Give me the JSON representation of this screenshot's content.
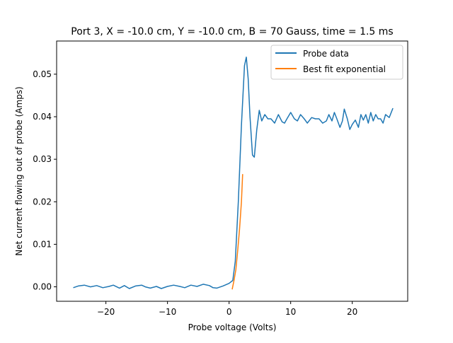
{
  "chart_data": {
    "type": "line",
    "title": "Port 3, X = -10.0 cm, Y = -10.0 cm, B = 70 Gauss, time = 1.5 ms",
    "xlabel": "Probe voltage (Volts)",
    "ylabel": "Net current flowing out of probe (Amps)",
    "xlim": [
      -28,
      29
    ],
    "ylim": [
      -0.0034,
      0.0578
    ],
    "grid": false,
    "legend_position": "top-right",
    "xticks": [
      -20,
      -10,
      0,
      10,
      20
    ],
    "xtick_labels": [
      "−20",
      "−10",
      "0",
      "10",
      "20"
    ],
    "yticks": [
      0.0,
      0.01,
      0.02,
      0.03,
      0.04,
      0.05
    ],
    "ytick_labels": [
      "0.00",
      "0.01",
      "0.02",
      "0.03",
      "0.04",
      "0.05"
    ],
    "series": [
      {
        "name": "Probe data",
        "color": "#1f77b4",
        "x": [
          -25.3,
          -24.5,
          -23.5,
          -22.5,
          -21.5,
          -20.5,
          -19.5,
          -18.8,
          -17.8,
          -17.0,
          -16.2,
          -15.2,
          -14.2,
          -13.6,
          -12.8,
          -11.8,
          -11.0,
          -10.0,
          -9.0,
          -8.0,
          -7.2,
          -6.2,
          -5.2,
          -4.2,
          -3.2,
          -2.6,
          -2.0,
          -1.0,
          0.0,
          0.6,
          1.0,
          1.5,
          2.0,
          2.5,
          2.8,
          3.1,
          3.4,
          3.8,
          4.1,
          4.5,
          4.9,
          5.3,
          5.8,
          6.3,
          6.8,
          7.4,
          8.0,
          8.6,
          9.0,
          9.4,
          10.0,
          10.6,
          11.1,
          11.6,
          12.2,
          12.7,
          13.4,
          14.0,
          14.6,
          15.2,
          15.8,
          16.2,
          16.7,
          17.1,
          17.5,
          18.0,
          18.4,
          18.7,
          19.2,
          19.6,
          20.0,
          20.5,
          21.0,
          21.4,
          21.8,
          22.2,
          22.6,
          23.0,
          23.4,
          23.8,
          24.2,
          24.6,
          25.0,
          25.4,
          26.0,
          26.6
        ],
        "y": [
          -0.0002,
          0.0002,
          0.0004,
          0.0,
          0.0003,
          -0.0002,
          0.0001,
          0.0004,
          -0.0003,
          0.0003,
          -0.0004,
          0.0002,
          0.0004,
          0.0,
          -0.0003,
          0.0001,
          -0.0004,
          0.0001,
          0.0004,
          0.0001,
          -0.0002,
          0.0004,
          0.0001,
          0.0006,
          0.0003,
          -0.0002,
          -0.0003,
          0.0002,
          0.0008,
          0.0015,
          0.006,
          0.02,
          0.038,
          0.052,
          0.054,
          0.049,
          0.04,
          0.031,
          0.0305,
          0.037,
          0.0415,
          0.039,
          0.0405,
          0.0395,
          0.0395,
          0.0385,
          0.0405,
          0.0388,
          0.0385,
          0.0395,
          0.041,
          0.0395,
          0.039,
          0.0405,
          0.0395,
          0.0385,
          0.0398,
          0.0395,
          0.0395,
          0.0385,
          0.039,
          0.0405,
          0.039,
          0.041,
          0.0395,
          0.0375,
          0.039,
          0.0418,
          0.0395,
          0.037,
          0.0382,
          0.0392,
          0.0375,
          0.0405,
          0.0392,
          0.0405,
          0.0385,
          0.041,
          0.039,
          0.0405,
          0.0395,
          0.0395,
          0.0385,
          0.0405,
          0.0398,
          0.042
        ]
      },
      {
        "name": "Best fit exponential",
        "color": "#ff7f0e",
        "x": [
          0.5,
          0.8,
          1.1,
          1.4,
          1.7,
          2.0,
          2.2
        ],
        "y": [
          -0.0006,
          0.0015,
          0.004,
          0.0085,
          0.0135,
          0.02,
          0.0265
        ]
      }
    ]
  }
}
